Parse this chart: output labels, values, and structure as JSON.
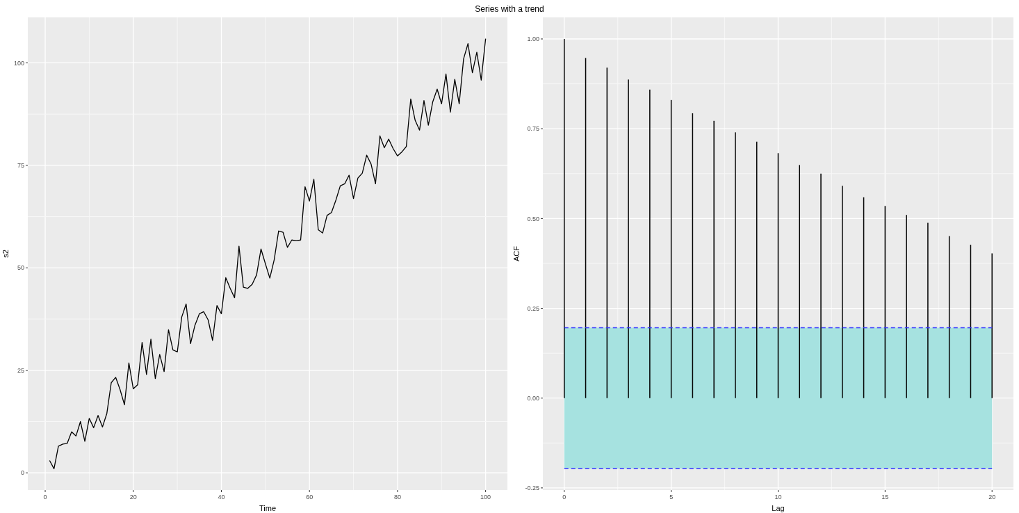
{
  "chart_data": [
    {
      "type": "line",
      "title": "Series with a trend",
      "xlabel": "Time",
      "ylabel": "s2",
      "x": [
        1,
        2,
        3,
        4,
        5,
        6,
        7,
        8,
        9,
        10,
        11,
        12,
        13,
        14,
        15,
        16,
        17,
        18,
        19,
        20,
        21,
        22,
        23,
        24,
        25,
        26,
        27,
        28,
        29,
        30,
        31,
        32,
        33,
        34,
        35,
        36,
        37,
        38,
        39,
        40,
        41,
        42,
        43,
        44,
        45,
        46,
        47,
        48,
        49,
        50,
        51,
        52,
        53,
        54,
        55,
        56,
        57,
        58,
        59,
        60,
        61,
        62,
        63,
        64,
        65,
        66,
        67,
        68,
        69,
        70,
        71,
        72,
        73,
        74,
        75,
        76,
        77,
        78,
        79,
        80,
        81,
        82,
        83,
        84,
        85,
        86,
        87,
        88,
        89,
        90,
        91,
        92,
        93,
        94,
        95,
        96,
        97,
        98,
        99,
        100
      ],
      "series": [
        {
          "color": "#000000",
          "values": [
            3,
            1,
            6.5,
            7,
            7.2,
            10,
            9,
            12.5,
            7.7,
            13.3,
            11,
            14,
            11.2,
            14.5,
            22,
            23.3,
            20.3,
            16.6,
            26.8,
            20.5,
            21.5,
            31.8,
            24,
            32.6,
            23,
            28.9,
            24.7,
            34.9,
            30,
            29.5,
            38,
            41.2,
            31.5,
            36,
            38.8,
            39.3,
            37.3,
            32.3,
            40.8,
            38.8,
            47.6,
            45,
            42.7,
            55.3,
            45.3,
            45,
            46,
            48.3,
            54.6,
            51,
            47.5,
            52,
            59,
            58.7,
            55,
            56.8,
            56.6,
            56.8,
            69.8,
            66.3,
            71.6,
            59.3,
            58.5,
            62.8,
            63.5,
            66.5,
            70,
            70.5,
            72.6,
            66.9,
            71.9,
            73.1,
            77.5,
            75.3,
            70.5,
            82.2,
            79.3,
            81.4,
            79.1,
            77.3,
            78.3,
            79.6,
            91.2,
            86,
            83.6,
            90.8,
            84.8,
            90.5,
            93.6,
            90,
            97.3,
            88,
            96,
            90,
            101,
            104.7,
            97.6,
            102.6,
            95.8,
            105.9
          ]
        }
      ],
      "xlim": [
        -3.95,
        104.95
      ],
      "ylim": [
        -4.2,
        111.1
      ],
      "xticks": [
        0,
        {
          "value": 10,
          "label": null
        },
        20,
        {
          "value": 30,
          "label": null
        },
        40,
        {
          "value": 50,
          "label": null
        },
        60,
        {
          "value": 70,
          "label": null
        },
        80,
        {
          "value": 90,
          "label": null
        },
        100
      ],
      "yticks": [
        0,
        {
          "value": 12.5,
          "label": null
        },
        25,
        {
          "value": 37.5,
          "label": null
        },
        50,
        {
          "value": 62.5,
          "label": null
        },
        75,
        {
          "value": 87.5,
          "label": null
        },
        100
      ],
      "grid": true
    },
    {
      "type": "bar",
      "xlabel": "Lag",
      "ylabel": "ACF",
      "x": [
        0,
        1,
        2,
        3,
        4,
        5,
        6,
        7,
        8,
        9,
        10,
        11,
        12,
        13,
        14,
        15,
        16,
        17,
        18,
        19,
        20
      ],
      "series": [
        {
          "color": "#000000",
          "values": [
            1.0,
            0.947,
            0.92,
            0.887,
            0.859,
            0.83,
            0.793,
            0.772,
            0.74,
            0.714,
            0.682,
            0.649,
            0.625,
            0.591,
            0.559,
            0.535,
            0.51,
            0.488,
            0.451,
            0.427,
            0.403
          ]
        }
      ],
      "bands": [
        {
          "axis": "y",
          "from": -0.196,
          "to": 0.196,
          "color": "#a6e2e0"
        }
      ],
      "ref_lines": [
        {
          "axis": "y",
          "value": 0.196,
          "color": "#3333ff",
          "line_style": "dashed"
        },
        {
          "axis": "y",
          "value": -0.196,
          "color": "#3333ff",
          "line_style": "dashed"
        }
      ],
      "xlim": [
        -1,
        21
      ],
      "ylim": [
        -0.256,
        1.06
      ],
      "xticks": [
        0,
        {
          "value": 2.5,
          "label": null
        },
        5,
        {
          "value": 7.5,
          "label": null
        },
        10,
        {
          "value": 12.5,
          "label": null
        },
        15,
        {
          "value": 17.5,
          "label": null
        },
        20
      ],
      "yticks": [
        {
          "value": -0.25,
          "label": "-0.25"
        },
        {
          "value": -0.125,
          "label": null
        },
        {
          "value": 0,
          "label": "0.00"
        },
        {
          "value": 0.125,
          "label": null
        },
        {
          "value": 0.375,
          "label": null
        },
        {
          "value": 0.625,
          "label": null
        },
        {
          "value": 0.875,
          "label": null
        },
        {
          "value": 0.25,
          "label": "0.25"
        },
        {
          "value": 0.5,
          "label": "0.50"
        },
        {
          "value": 0.75,
          "label": "0.75"
        },
        {
          "value": 1,
          "label": "1.00"
        }
      ],
      "grid": true
    }
  ]
}
